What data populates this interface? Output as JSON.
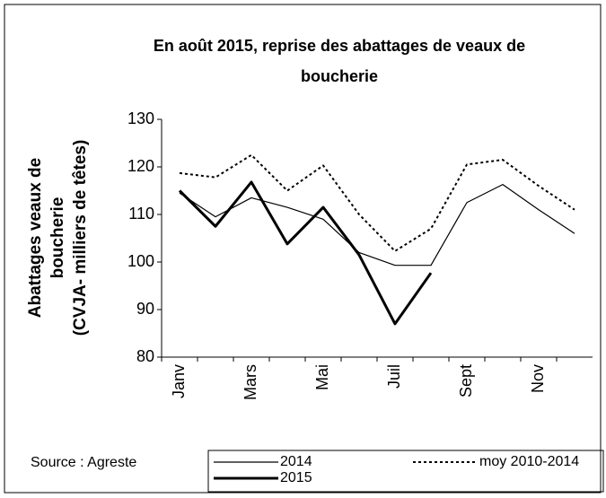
{
  "chart_data": {
    "type": "line",
    "title": [
      "En août 2015, reprise des abattages de veaux de",
      "boucherie"
    ],
    "y_label": [
      "Abattages veaux de",
      "boucherie",
      "(CVJA- milliers de têtes)"
    ],
    "source": "Source : Agreste",
    "categories": [
      "Janv",
      null,
      "Mars",
      null,
      "Mai",
      null,
      "Juil",
      null,
      "Sept",
      null,
      "Nov",
      null
    ],
    "series": [
      {
        "name": "2014",
        "color": "#000000",
        "width": 1.2,
        "dash": "none",
        "values": [
          114.5,
          109.5,
          113.5,
          111.5,
          109,
          102,
          99.3,
          99.3,
          112.5,
          116.3,
          111,
          106
        ]
      },
      {
        "name": "2015",
        "color": "#000000",
        "width": 3,
        "dash": "none",
        "values": [
          115,
          107.5,
          116.8,
          103.8,
          111.5,
          101.5,
          87,
          97.7,
          null,
          null,
          null,
          null
        ]
      },
      {
        "name": "moy 2010-2014",
        "color": "#000000",
        "width": 2,
        "dash": "3 3",
        "values": [
          118.7,
          117.8,
          122.5,
          115,
          120.3,
          110,
          102.3,
          107,
          120.5,
          121.5,
          116,
          111
        ]
      }
    ],
    "ylim": [
      80,
      130
    ],
    "yticks": [
      80,
      90,
      100,
      110,
      120,
      130
    ],
    "grid": false
  }
}
